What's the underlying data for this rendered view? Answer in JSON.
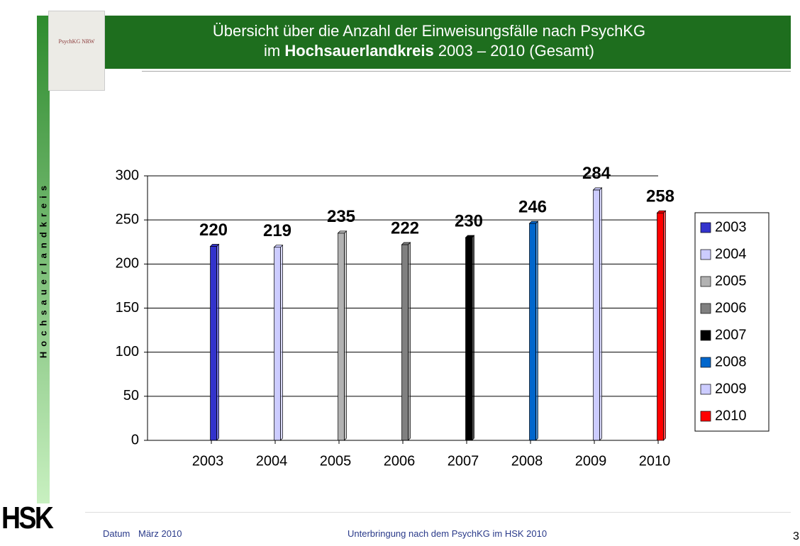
{
  "slide": {
    "title_line1": "Übersicht über die Anzahl der Einweisungsfälle nach PsychKG",
    "title_line2_prefix": "im",
    "title_line2_bold": "Hochsauerlandkreis",
    "title_line2_suffix": "2003 – 2010 (Gesamt)",
    "side_label": "Hochsauerlandkreis",
    "book_title": "PsychKG NRW",
    "logo": "HSK",
    "footer_label": "Datum",
    "footer_date": "März 2010",
    "footer_center": "Unterbringung nach dem PsychKG im HSK 2010",
    "page_number": "3"
  },
  "chart_data": {
    "type": "bar",
    "categories": [
      "2003",
      "2004",
      "2005",
      "2006",
      "2007",
      "2008",
      "2009",
      "2010"
    ],
    "series": [
      {
        "name": "2003",
        "color": "#3333cc",
        "values": [
          220,
          null,
          null,
          null,
          null,
          null,
          null,
          null
        ]
      },
      {
        "name": "2004",
        "color": "#ccccff",
        "values": [
          null,
          219,
          null,
          null,
          null,
          null,
          null,
          null
        ]
      },
      {
        "name": "2005",
        "color": "#b2b2b2",
        "values": [
          null,
          null,
          235,
          null,
          null,
          null,
          null,
          null
        ]
      },
      {
        "name": "2006",
        "color": "#808080",
        "values": [
          null,
          null,
          null,
          222,
          null,
          null,
          null,
          null
        ]
      },
      {
        "name": "2007",
        "color": "#000000",
        "values": [
          null,
          null,
          null,
          null,
          230,
          null,
          null,
          null
        ]
      },
      {
        "name": "2008",
        "color": "#0066cc",
        "values": [
          null,
          null,
          null,
          null,
          null,
          246,
          null,
          null
        ]
      },
      {
        "name": "2009",
        "color": "#ccccff",
        "values": [
          null,
          null,
          null,
          null,
          null,
          null,
          284,
          null
        ]
      },
      {
        "name": "2010",
        "color": "#ff0000",
        "values": [
          null,
          null,
          null,
          null,
          null,
          null,
          null,
          258
        ]
      }
    ],
    "ylim": [
      0,
      300
    ],
    "yticks": [
      0,
      50,
      100,
      150,
      200,
      250,
      300
    ],
    "grid": true,
    "legend": "right"
  }
}
